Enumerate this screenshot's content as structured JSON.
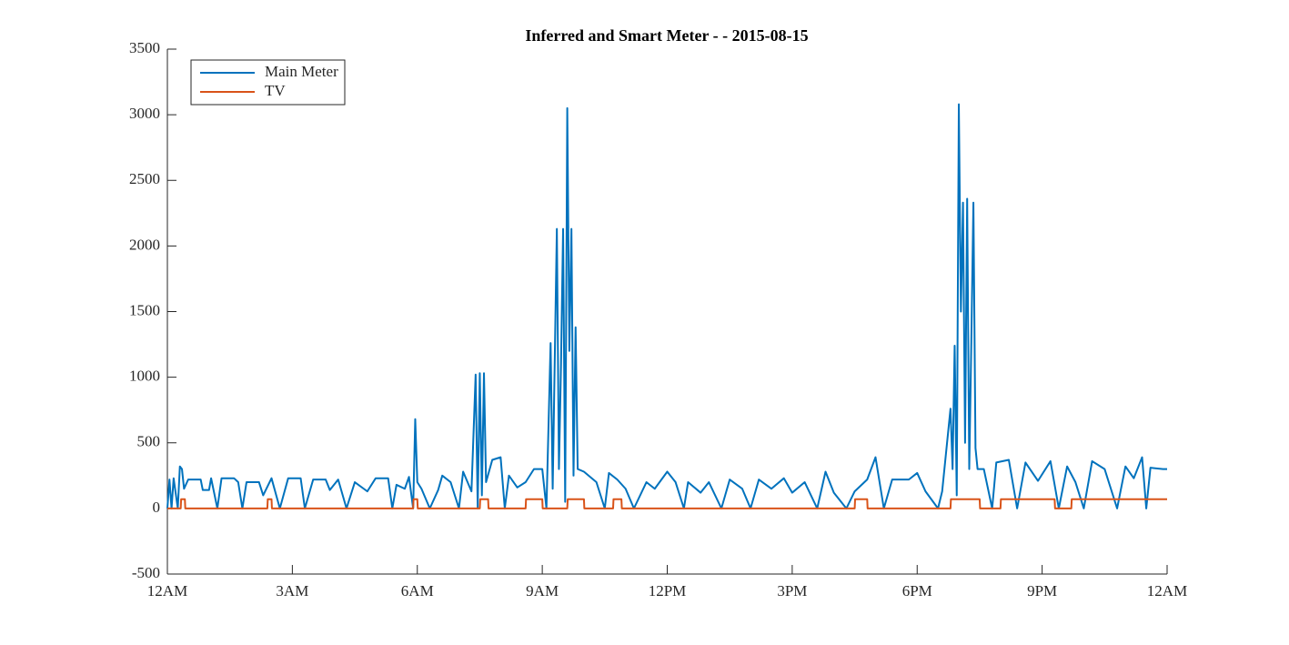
{
  "chart_data": {
    "type": "line",
    "title": "Inferred and Smart Meter -  - 2015-08-15",
    "xlim": [
      0,
      24
    ],
    "xticks": [
      {
        "value": 0,
        "label": "12AM"
      },
      {
        "value": 3,
        "label": "3AM"
      },
      {
        "value": 6,
        "label": "6AM"
      },
      {
        "value": 9,
        "label": "9AM"
      },
      {
        "value": 12,
        "label": "12PM"
      },
      {
        "value": 15,
        "label": "3PM"
      },
      {
        "value": 18,
        "label": "6PM"
      },
      {
        "value": 21,
        "label": "9PM"
      },
      {
        "value": 24,
        "label": "12AM"
      }
    ],
    "ylim": [
      -500,
      3500
    ],
    "yticks": [
      -500,
      0,
      500,
      1000,
      1500,
      2000,
      2500,
      3000,
      3500
    ],
    "grid": false,
    "legend": "upper-left",
    "series": [
      {
        "name": "Main Meter",
        "color": "#0072bd",
        "x": [
          0.0,
          0.05,
          0.1,
          0.15,
          0.25,
          0.3,
          0.35,
          0.4,
          0.5,
          0.8,
          0.85,
          1.0,
          1.05,
          1.2,
          1.3,
          1.6,
          1.7,
          1.8,
          1.9,
          2.2,
          2.3,
          2.5,
          2.7,
          2.9,
          3.2,
          3.3,
          3.5,
          3.8,
          3.9,
          4.1,
          4.3,
          4.5,
          4.8,
          5.0,
          5.3,
          5.4,
          5.5,
          5.7,
          5.8,
          5.9,
          5.95,
          6.0,
          6.1,
          6.3,
          6.5,
          6.6,
          6.8,
          7.0,
          7.1,
          7.3,
          7.4,
          7.45,
          7.5,
          7.55,
          7.6,
          7.65,
          7.8,
          8.0,
          8.1,
          8.2,
          8.4,
          8.6,
          8.8,
          9.0,
          9.1,
          9.2,
          9.25,
          9.35,
          9.4,
          9.45,
          9.5,
          9.55,
          9.6,
          9.65,
          9.7,
          9.75,
          9.8,
          9.85,
          10.0,
          10.3,
          10.5,
          10.6,
          10.8,
          11.0,
          11.2,
          11.5,
          11.7,
          12.0,
          12.2,
          12.4,
          12.5,
          12.8,
          13.0,
          13.3,
          13.5,
          13.8,
          14.0,
          14.2,
          14.5,
          14.8,
          15.0,
          15.3,
          15.6,
          15.8,
          16.0,
          16.3,
          16.5,
          16.8,
          17.0,
          17.2,
          17.4,
          17.8,
          18.0,
          18.2,
          18.5,
          18.6,
          18.8,
          18.85,
          18.9,
          18.95,
          19.0,
          19.05,
          19.1,
          19.15,
          19.2,
          19.25,
          19.3,
          19.35,
          19.4,
          19.45,
          19.6,
          19.8,
          19.9,
          20.2,
          20.4,
          20.6,
          20.9,
          21.2,
          21.4,
          21.6,
          21.8,
          22.0,
          22.2,
          22.5,
          22.8,
          23.0,
          23.2,
          23.4,
          23.5,
          23.6,
          23.9,
          24.0
        ],
        "values": [
          0,
          220,
          0,
          230,
          0,
          320,
          300,
          150,
          220,
          220,
          140,
          140,
          230,
          0,
          230,
          230,
          200,
          0,
          200,
          200,
          100,
          230,
          0,
          230,
          230,
          0,
          220,
          220,
          140,
          220,
          0,
          200,
          130,
          230,
          230,
          0,
          180,
          150,
          240,
          0,
          680,
          200,
          150,
          0,
          140,
          250,
          200,
          0,
          280,
          130,
          1020,
          0,
          1030,
          100,
          1030,
          200,
          370,
          390,
          0,
          250,
          160,
          200,
          300,
          300,
          0,
          1260,
          150,
          2130,
          300,
          1100,
          2130,
          50,
          3050,
          1200,
          2130,
          250,
          1380,
          300,
          280,
          200,
          0,
          270,
          220,
          150,
          0,
          200,
          150,
          280,
          200,
          0,
          200,
          120,
          200,
          0,
          220,
          150,
          0,
          220,
          150,
          230,
          120,
          200,
          0,
          280,
          120,
          0,
          130,
          220,
          390,
          0,
          220,
          220,
          270,
          130,
          0,
          130,
          760,
          300,
          1240,
          100,
          3080,
          1500,
          2330,
          500,
          2360,
          300,
          1270,
          2330,
          460,
          300,
          300,
          0,
          350,
          370,
          0,
          350,
          210,
          360,
          0,
          320,
          200,
          0,
          360,
          300,
          0,
          320,
          230,
          390,
          0,
          310,
          300,
          300
        ]
      },
      {
        "name": "TV",
        "color": "#d95319",
        "x": [
          0,
          0.32,
          0.33,
          0.42,
          0.43,
          2.4,
          2.41,
          2.5,
          2.51,
          5.9,
          5.91,
          6.0,
          6.01,
          7.5,
          7.51,
          7.7,
          7.71,
          8.6,
          8.61,
          9.0,
          9.01,
          9.6,
          9.61,
          10.0,
          10.01,
          10.7,
          10.71,
          10.9,
          10.91,
          16.5,
          16.51,
          16.8,
          16.81,
          18.8,
          18.81,
          19.5,
          19.51,
          20.0,
          20.01,
          21.3,
          21.31,
          21.7,
          21.71,
          24.0
        ],
        "values": [
          0,
          0,
          70,
          70,
          0,
          0,
          70,
          70,
          0,
          0,
          70,
          70,
          0,
          0,
          70,
          70,
          0,
          0,
          70,
          70,
          0,
          0,
          70,
          70,
          0,
          0,
          70,
          70,
          0,
          0,
          70,
          70,
          0,
          0,
          70,
          70,
          0,
          0,
          70,
          70,
          0,
          0,
          70,
          70
        ]
      }
    ]
  }
}
